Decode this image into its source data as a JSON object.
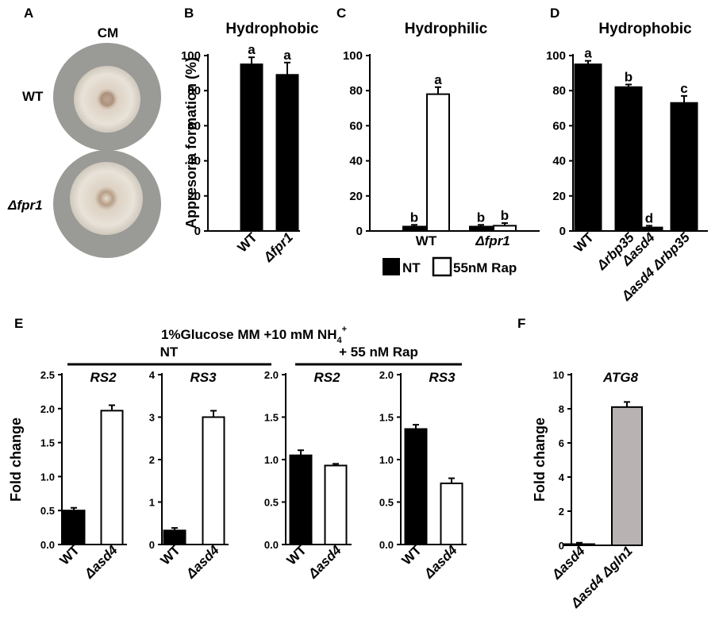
{
  "panel_letters": [
    "A",
    "B",
    "C",
    "D",
    "E",
    "F"
  ],
  "panelA": {
    "medium": "CM",
    "strains": [
      "WT",
      "Δfpr1"
    ],
    "colors": {
      "plate": "#9a9a96",
      "colony_center": "#a98e7a",
      "colony_edge": "#e3dbd0"
    }
  },
  "legendC": {
    "items": [
      "NT",
      "55nM Rap"
    ]
  },
  "panelE": {
    "condition_main": "1%Glucose MM +10 mM NH",
    "condition_sub": "4",
    "condition_sup": "+",
    "group_nt": "NT",
    "group_rap": "+ 55 nM Rap"
  },
  "chart_data": [
    {
      "id": "B",
      "type": "bar",
      "title": "Hydrophobic",
      "ylabel": "Appresoria formation (%)",
      "ylim": [
        0,
        100
      ],
      "yticks": [
        0,
        20,
        40,
        60,
        80,
        100
      ],
      "categories": [
        "WT",
        "Δfpr1"
      ],
      "series": [
        {
          "values": [
            95,
            89
          ],
          "errors": [
            4,
            7
          ],
          "color": "#000000"
        }
      ],
      "annotations": [
        "a",
        "a"
      ]
    },
    {
      "id": "C",
      "type": "bar",
      "title": "Hydrophilic",
      "ylim": [
        0,
        100
      ],
      "yticks": [
        0,
        20,
        40,
        60,
        80,
        100
      ],
      "categories": [
        "WT",
        "Δfpr1"
      ],
      "series": [
        {
          "name": "NT",
          "values": [
            2.5,
            2.5
          ],
          "errors": [
            1,
            1
          ],
          "color": "#000000"
        },
        {
          "name": "55nM Rap",
          "values": [
            78,
            3
          ],
          "errors": [
            4,
            1.5
          ],
          "color": "#ffffff"
        }
      ],
      "annotations": [
        [
          "b",
          "a"
        ],
        [
          "b",
          "b"
        ]
      ]
    },
    {
      "id": "D",
      "type": "bar",
      "title": "Hydrophobic",
      "ylim": [
        0,
        100
      ],
      "yticks": [
        0,
        20,
        40,
        60,
        80,
        100
      ],
      "categories": [
        "WT",
        "Δrbp35",
        "Δasd4",
        "Δasd4 Δrbp35"
      ],
      "series": [
        {
          "values": [
            95,
            82,
            2,
            73
          ],
          "errors": [
            2,
            1.5,
            1,
            4
          ],
          "color": "#000000"
        }
      ],
      "annotations": [
        "a",
        "b",
        "d",
        "c"
      ]
    },
    {
      "id": "E1",
      "type": "bar",
      "title": "RS2",
      "ylabel": "Fold change",
      "ylim": [
        0,
        2.5
      ],
      "yticks": [
        "0.0",
        "0.5",
        "1.0",
        "1.5",
        "2.0",
        "2.5"
      ],
      "categories": [
        "WT",
        "Δasd4"
      ],
      "series": [
        {
          "values": [
            0.5,
            1.97
          ],
          "errors": [
            0.04,
            0.08
          ],
          "colors": [
            "#000000",
            "#ffffff"
          ]
        }
      ]
    },
    {
      "id": "E2",
      "type": "bar",
      "title": "RS3",
      "ylim": [
        0,
        4
      ],
      "yticks": [
        "0",
        "1",
        "2",
        "3",
        "4"
      ],
      "categories": [
        "WT",
        "Δasd4"
      ],
      "series": [
        {
          "values": [
            0.33,
            3.0
          ],
          "errors": [
            0.06,
            0.15
          ],
          "colors": [
            "#000000",
            "#ffffff"
          ]
        }
      ]
    },
    {
      "id": "E3",
      "type": "bar",
      "title": "RS2",
      "ylim": [
        0,
        2.0
      ],
      "yticks": [
        "0.0",
        "0.5",
        "1.0",
        "1.5",
        "2.0"
      ],
      "categories": [
        "WT",
        "Δasd4"
      ],
      "series": [
        {
          "values": [
            1.05,
            0.93
          ],
          "errors": [
            0.06,
            0.02
          ],
          "colors": [
            "#000000",
            "#ffffff"
          ]
        }
      ]
    },
    {
      "id": "E4",
      "type": "bar",
      "title": "RS3",
      "ylim": [
        0,
        2.0
      ],
      "yticks": [
        "0.0",
        "0.5",
        "1.0",
        "1.5",
        "2.0"
      ],
      "categories": [
        "WT",
        "Δasd4"
      ],
      "series": [
        {
          "values": [
            1.36,
            0.72
          ],
          "errors": [
            0.05,
            0.06
          ],
          "colors": [
            "#000000",
            "#ffffff"
          ]
        }
      ]
    },
    {
      "id": "F",
      "type": "bar",
      "title": "ATG8",
      "ylabel": "Fold change",
      "ylim": [
        0,
        10
      ],
      "yticks": [
        "0",
        "2",
        "4",
        "6",
        "8",
        "10"
      ],
      "categories": [
        "Δasd4",
        "Δasd4 Δgln1"
      ],
      "series": [
        {
          "values": [
            0.05,
            8.1
          ],
          "errors": [
            0.1,
            0.3
          ],
          "colors": [
            "#000000",
            "#b8b2b2"
          ]
        }
      ]
    }
  ]
}
